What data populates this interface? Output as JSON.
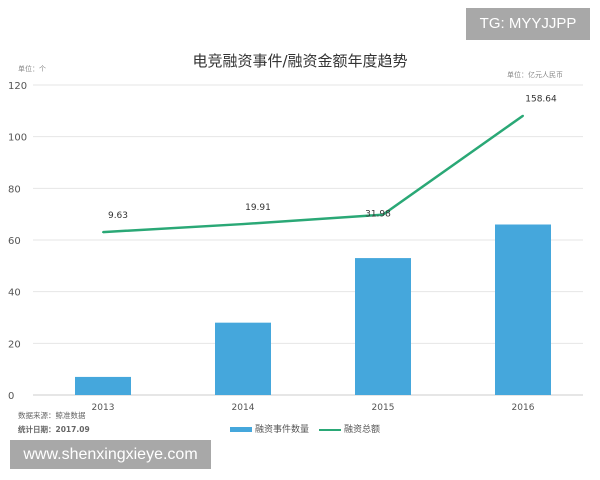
{
  "watermark_tg": "TG: MYYJJPP",
  "watermark_url": "www.shenxingxieye.com",
  "footer": {
    "source": "数据来源：鲸准数据",
    "date": "统计日期：2017.09"
  },
  "chart_data": {
    "type": "bar+line",
    "title": "电竞融资事件/融资金额年度趋势",
    "left_unit": "单位：个",
    "right_unit": "单位：亿元人民币",
    "categories": [
      "2013",
      "2014",
      "2015",
      "2016"
    ],
    "ylim": [
      0,
      120
    ],
    "yticks": [
      0,
      20,
      40,
      60,
      80,
      100,
      120
    ],
    "y2lim": [
      -199,
      198
    ],
    "grid": true,
    "legend": "bottom",
    "series": [
      {
        "name": "融资事件数量",
        "type": "bar",
        "axis": "left",
        "color": "#45a7dc",
        "values": [
          7,
          28,
          53,
          66
        ]
      },
      {
        "name": "融资总额",
        "type": "line",
        "axis": "right",
        "color": "#2aa876",
        "values": [
          9.63,
          19.91,
          31.98,
          158.64
        ],
        "labels": [
          "9.63",
          "19.91",
          "31.98",
          "158.64"
        ]
      }
    ]
  }
}
